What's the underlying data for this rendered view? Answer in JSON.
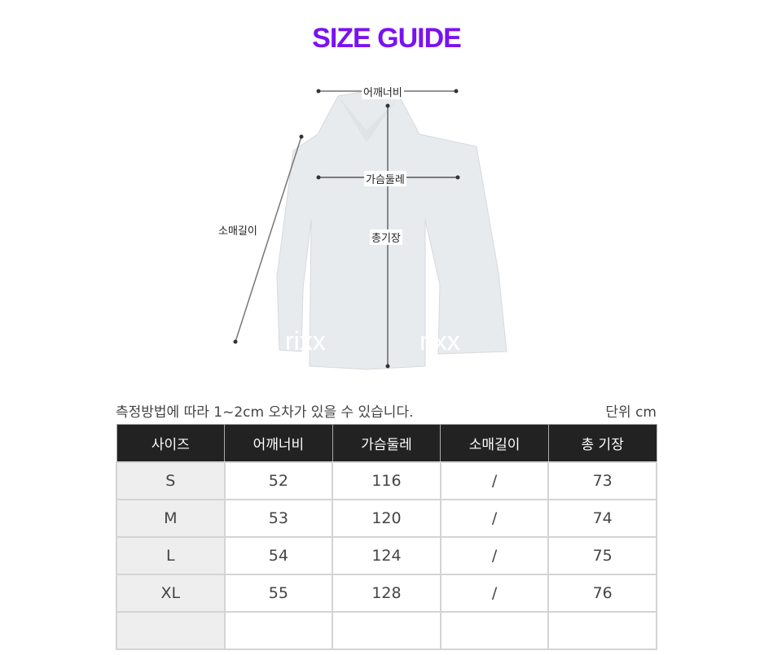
{
  "title": "SIZE GUIDE",
  "diagram": {
    "shoulder_label": "어깨너비",
    "chest_label": "가슴둘레",
    "sleeve_label": "소매길이",
    "length_label": "총기장",
    "watermark": "rixx"
  },
  "note": "측정방법에 따라 1~2cm 오차가 있을 수 있습니다.",
  "unit": "단위 cm",
  "table": {
    "headers": [
      "사이즈",
      "어깨너비",
      "가슴둘레",
      "소매길이",
      "총 기장"
    ],
    "rows": [
      [
        "S",
        "52",
        "116",
        "/",
        "73"
      ],
      [
        "M",
        "53",
        "120",
        "/",
        "74"
      ],
      [
        "L",
        "54",
        "124",
        "/",
        "75"
      ],
      [
        "XL",
        "55",
        "128",
        "/",
        "76"
      ],
      [
        "",
        "",
        "",
        "",
        ""
      ]
    ],
    "watermark": "RIXXRIXX"
  },
  "colors": {
    "title": "#7a12f0",
    "header_bg": "#222222"
  }
}
